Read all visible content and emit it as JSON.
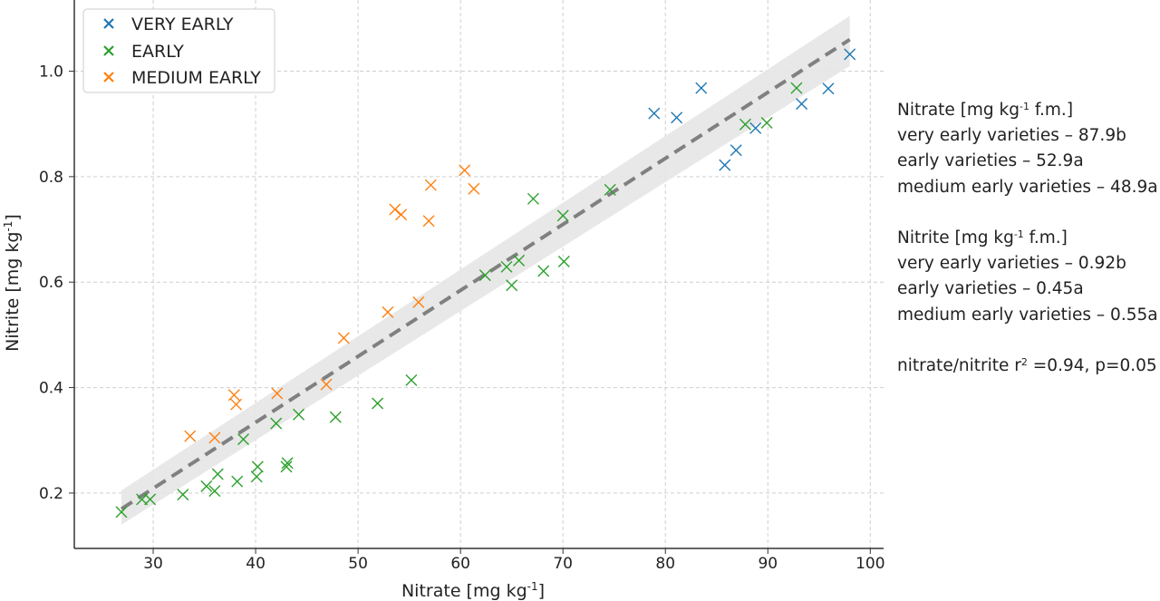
{
  "chart_data": {
    "type": "scatter",
    "xlabel_pre": "Nitrate [mg kg",
    "xlabel_sup": "-1",
    "xlabel_post": "]",
    "ylabel_pre": "Nitrite [mg kg",
    "ylabel_sup": "-1",
    "ylabel_post": "]",
    "xlim": [
      22.3,
      101.3
    ],
    "ylim": [
      0.095,
      1.135
    ],
    "xticks": [
      30,
      40,
      50,
      60,
      70,
      80,
      90,
      100
    ],
    "yticks": [
      0.2,
      0.4,
      0.6,
      0.8,
      1.0
    ],
    "ytick_labels": [
      "0.2",
      "0.4",
      "0.6",
      "0.8",
      "1.0"
    ],
    "grid": true,
    "grid_style": "dashed",
    "legend_position": "top-left",
    "marker": "x",
    "series": [
      {
        "name": "VERY EARLY",
        "color": "#1f77b4",
        "points": [
          [
            78.9,
            0.92
          ],
          [
            81.1,
            0.912
          ],
          [
            83.5,
            0.968
          ],
          [
            85.8,
            0.822
          ],
          [
            86.9,
            0.85
          ],
          [
            88.8,
            0.892
          ],
          [
            93.3,
            0.938
          ],
          [
            95.9,
            0.967
          ],
          [
            98.0,
            1.032
          ]
        ]
      },
      {
        "name": "EARLY",
        "color": "#2ca02c",
        "points": [
          [
            26.9,
            0.164
          ],
          [
            28.9,
            0.188
          ],
          [
            29.7,
            0.188
          ],
          [
            32.9,
            0.197
          ],
          [
            35.2,
            0.213
          ],
          [
            36.0,
            0.204
          ],
          [
            36.3,
            0.236
          ],
          [
            38.2,
            0.222
          ],
          [
            38.8,
            0.302
          ],
          [
            40.1,
            0.231
          ],
          [
            40.2,
            0.25
          ],
          [
            42.0,
            0.332
          ],
          [
            43.0,
            0.25
          ],
          [
            43.1,
            0.257
          ],
          [
            44.2,
            0.349
          ],
          [
            47.8,
            0.344
          ],
          [
            51.9,
            0.37
          ],
          [
            55.2,
            0.414
          ],
          [
            62.4,
            0.613
          ],
          [
            64.5,
            0.629
          ],
          [
            65.0,
            0.594
          ],
          [
            65.7,
            0.641
          ],
          [
            67.1,
            0.758
          ],
          [
            68.1,
            0.621
          ],
          [
            70.0,
            0.726
          ],
          [
            70.1,
            0.639
          ],
          [
            74.6,
            0.775
          ],
          [
            87.8,
            0.899
          ],
          [
            89.9,
            0.902
          ],
          [
            92.8,
            0.968
          ]
        ]
      },
      {
        "name": "MEDIUM EARLY",
        "color": "#ff7f0e",
        "points": [
          [
            33.6,
            0.308
          ],
          [
            36.0,
            0.305
          ],
          [
            37.9,
            0.386
          ],
          [
            38.1,
            0.368
          ],
          [
            42.1,
            0.389
          ],
          [
            46.9,
            0.406
          ],
          [
            48.6,
            0.494
          ],
          [
            52.9,
            0.543
          ],
          [
            53.6,
            0.738
          ],
          [
            54.2,
            0.728
          ],
          [
            55.9,
            0.562
          ],
          [
            56.9,
            0.716
          ],
          [
            57.1,
            0.784
          ],
          [
            60.4,
            0.812
          ],
          [
            61.3,
            0.777
          ]
        ]
      }
    ],
    "regression": {
      "line": [
        [
          26.9,
          0.17
        ],
        [
          98.0,
          1.06
        ]
      ],
      "band_upper": [
        [
          26.9,
          0.205
        ],
        [
          98.0,
          1.105
        ]
      ],
      "band_lower": [
        [
          26.9,
          0.14
        ],
        [
          98.0,
          1.01
        ]
      ],
      "line_color": "#808080",
      "band_color": "#e6e6e6"
    },
    "annotation": {
      "nitrate_header_pre": "Nitrate [mg kg",
      "nitrate_header_sup": "-1",
      "nitrate_header_post": " f.m.]",
      "nitrate_lines": [
        "very early varieties – 87.9b",
        "early varieties – 52.9a",
        "medium early varieties – 48.9a"
      ],
      "nitrite_header_pre": "Nitrite [mg kg",
      "nitrite_header_sup": "-1",
      "nitrite_header_post": " f.m.]",
      "nitrite_lines": [
        "very early varieties – 0.92b",
        "early varieties – 0.45a",
        "medium early varieties – 0.55a"
      ],
      "corr_pre": "nitrate/nitrite r",
      "corr_sup": "2",
      "corr_post": " =0.94, p=0.05"
    }
  }
}
